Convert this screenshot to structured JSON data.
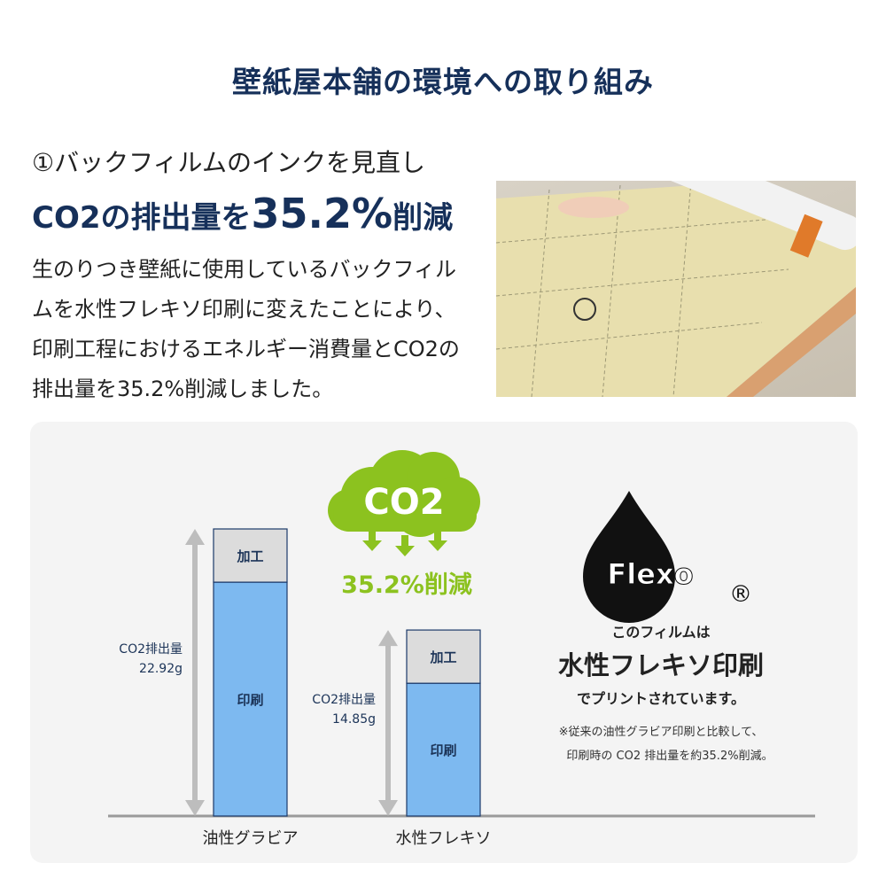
{
  "title": "壁紙屋本舗の環境への取り組み",
  "section": {
    "subtitle": "①バックフィルムのインクを見直し",
    "headline_pre": "CO2の排出量を",
    "headline_value": "35.2%",
    "headline_post": "削減",
    "body": "生のりつき壁紙に使用しているバックフィルムを水性フレキソ印刷に変えたことにより、印刷工程におけるエネルギー消費量とCO2の排出量を35.2%削減しました。"
  },
  "cloud": {
    "label": "CO2",
    "reduction": "35.2%削減",
    "color": "#8cc21f"
  },
  "flexo": {
    "logo": "Flexo",
    "registered": "®",
    "line1": "このフィルムは",
    "line2": "水性フレキソ印刷",
    "line3": "でプリントされています。",
    "note1": "※従来の油性グラビア印刷と比較して、",
    "note2": "印刷時の CO2 排出量を約35.2%削減。"
  },
  "chart_data": {
    "type": "bar",
    "stacked": true,
    "categories": [
      "油性グラビア",
      "水性フレキソ"
    ],
    "series": [
      {
        "name": "印刷",
        "values": [
          18.67,
          10.6
        ],
        "color": "#7db9f0"
      },
      {
        "name": "加工",
        "values": [
          4.25,
          4.25
        ],
        "color": "#dcdcdc"
      }
    ],
    "totals": [
      22.92,
      14.85
    ],
    "total_labels": [
      {
        "label": "CO2排出量",
        "value": "22.92g"
      },
      {
        "label": "CO2排出量",
        "value": "14.85g"
      }
    ],
    "unit": "g",
    "ylim": [
      0,
      22.92
    ],
    "grid": false
  }
}
